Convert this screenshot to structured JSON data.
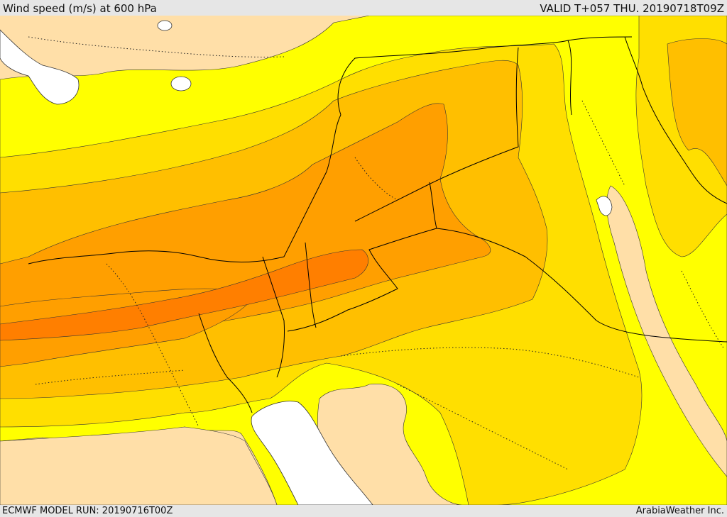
{
  "header": {
    "title": "Wind speed (m/s) at 600 hPa",
    "valid": "VALID T+057 THU. 20190718T09Z"
  },
  "footer": {
    "model_run": "ECMWF MODEL RUN: 20190716T00Z",
    "brand": "ArabiaWeather Inc."
  },
  "colors": {
    "band_light": "#ffdfa8",
    "band_yellow": "#ffff00",
    "band_gold": "#ffdf00",
    "band_amber": "#ffbf00",
    "band_orange": "#ff9f00",
    "band_deep": "#ff7f00",
    "water": "#ffffff",
    "border_line": "#000000"
  }
}
